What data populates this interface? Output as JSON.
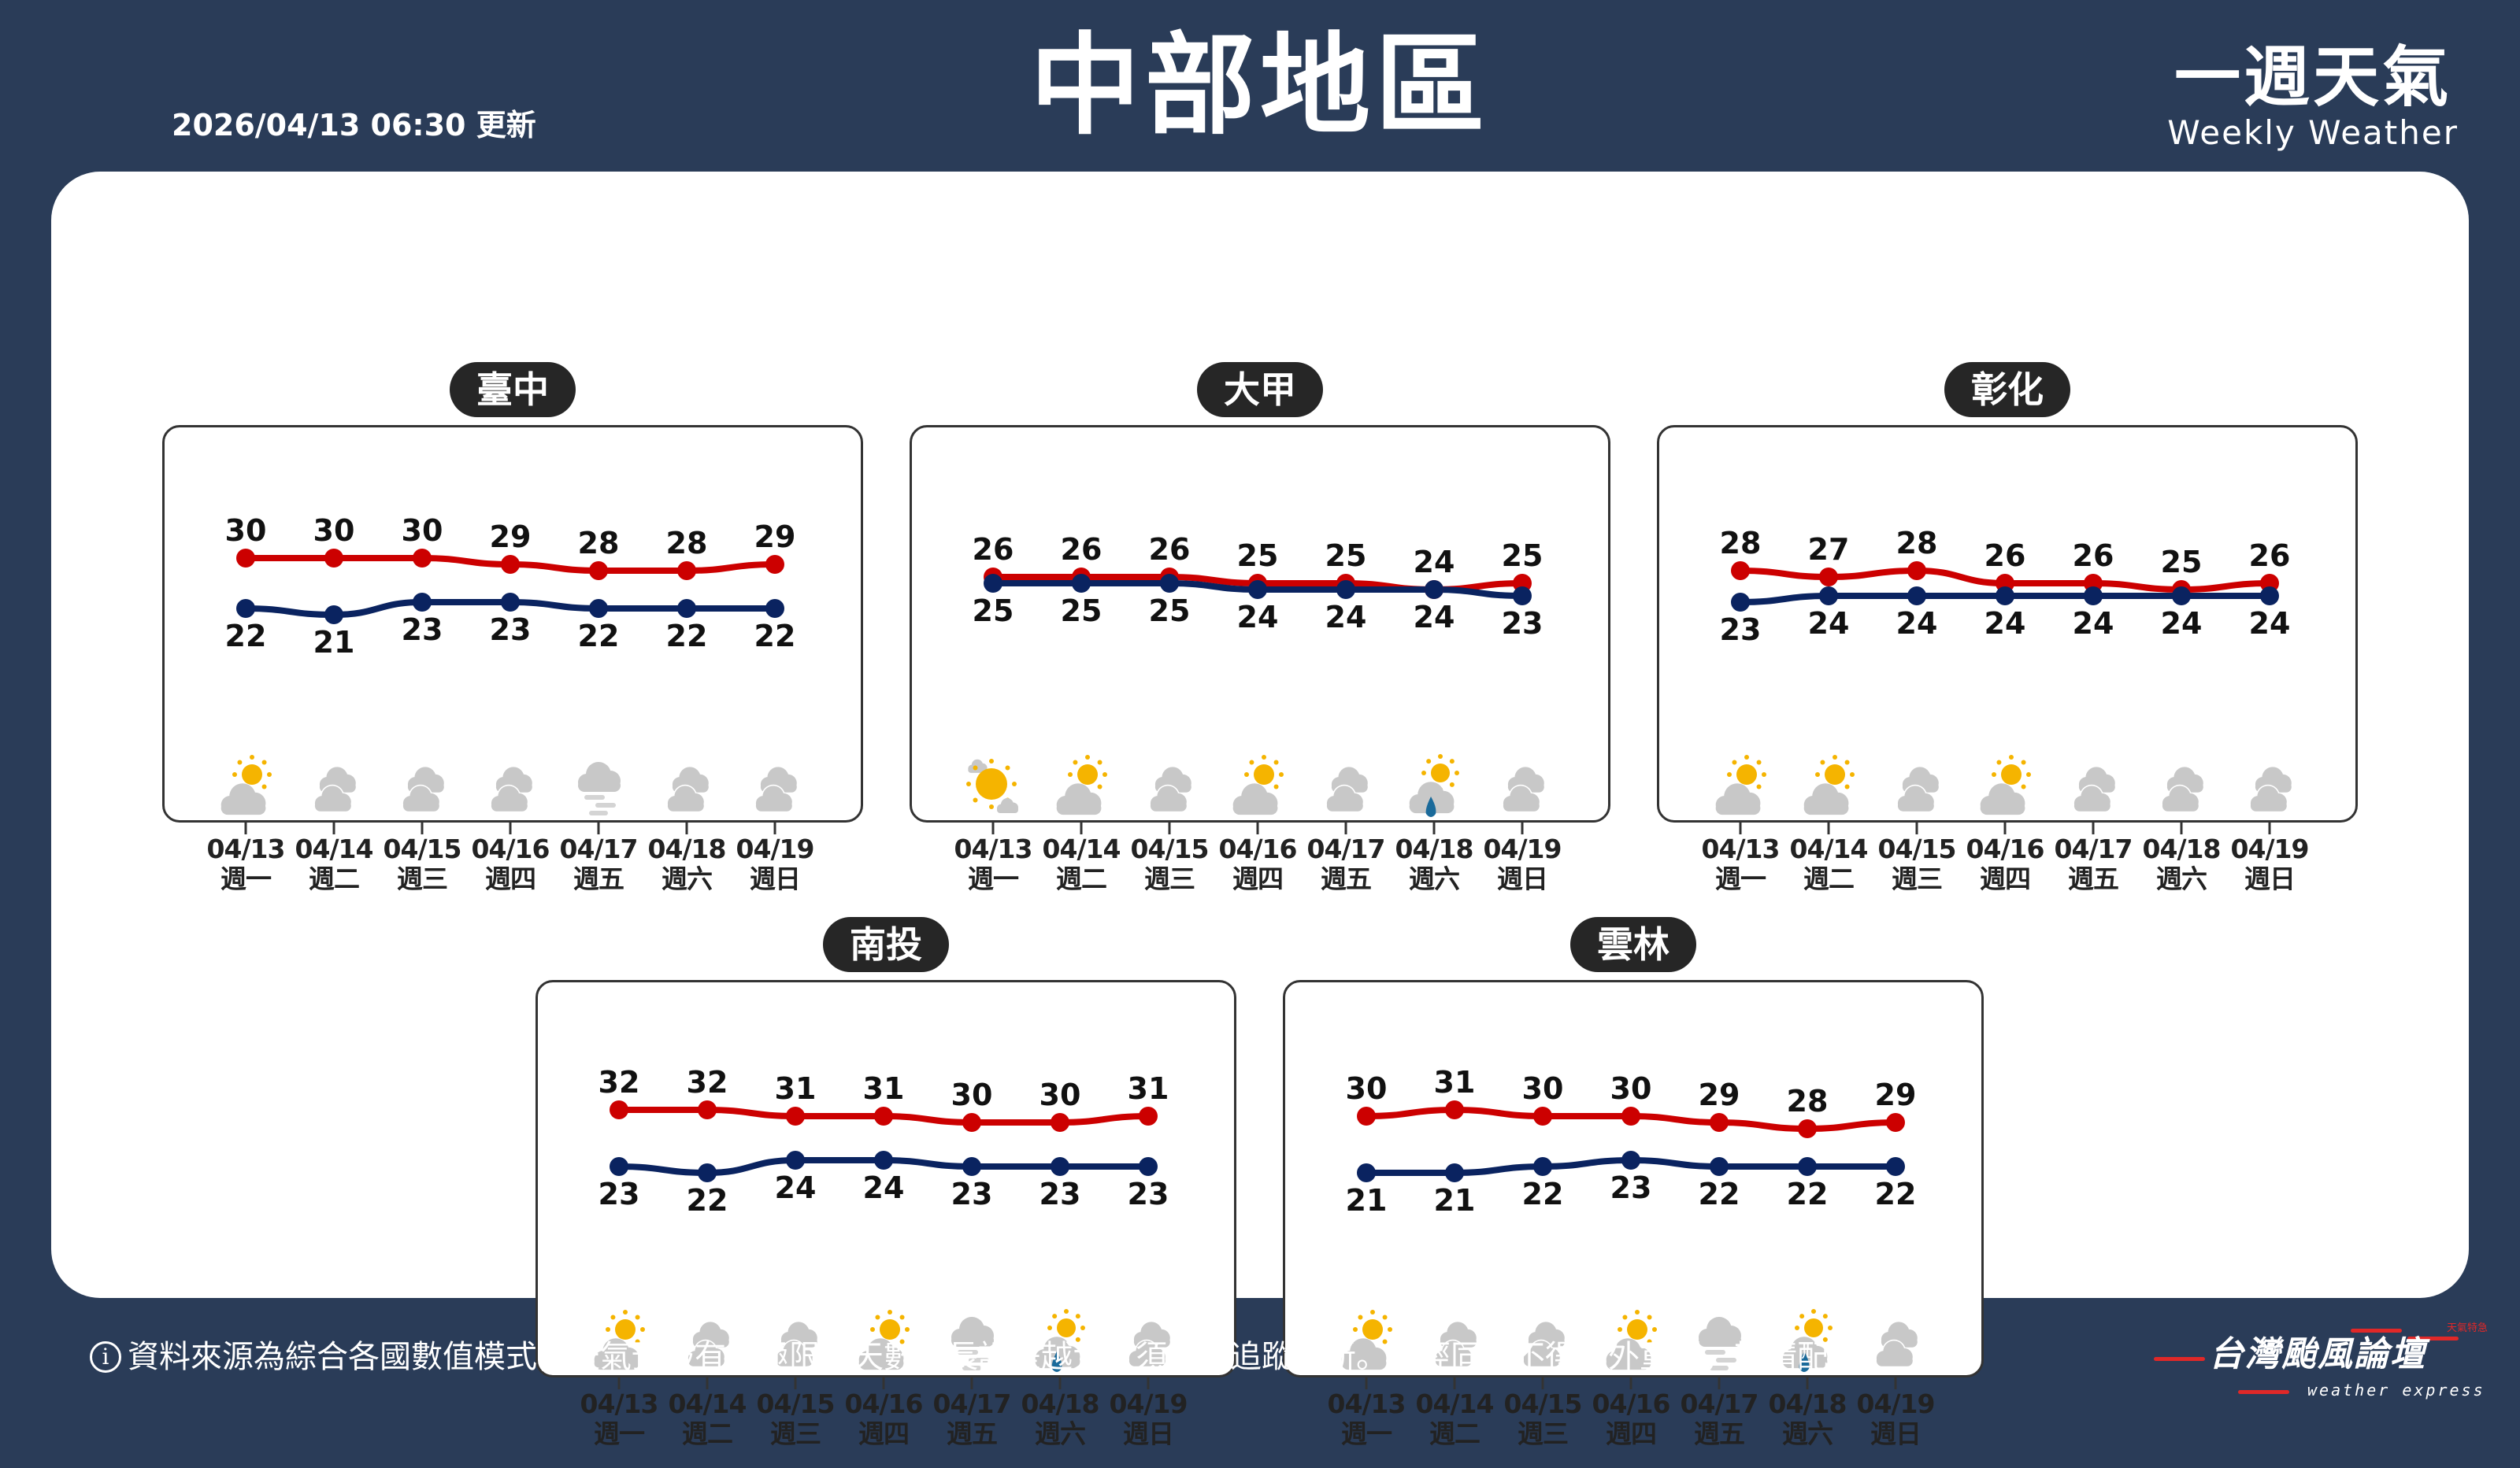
{
  "header": {
    "title": "中部地區",
    "updated": "2026/04/13 06:30 更新",
    "brand_zh": "一週天氣",
    "brand_en": "Weekly Weather"
  },
  "colors": {
    "background": "#2a3c58",
    "high": "#cc0000",
    "low": "#0a2360",
    "sun": "#f5b400",
    "cloud": "#c8c8c8",
    "rain": "#1a6a9a"
  },
  "dates": [
    "04/13",
    "04/14",
    "04/15",
    "04/16",
    "04/17",
    "04/18",
    "04/19"
  ],
  "weekdays": [
    "週一",
    "週二",
    "週三",
    "週四",
    "週五",
    "週六",
    "週日"
  ],
  "cities": [
    {
      "name": "臺中",
      "high": [
        30,
        30,
        30,
        29,
        28,
        28,
        29
      ],
      "low": [
        22,
        21,
        23,
        23,
        22,
        22,
        22
      ],
      "icons": [
        "partly-cloudy",
        "cloudy",
        "cloudy",
        "cloudy",
        "fog",
        "cloudy",
        "cloudy"
      ]
    },
    {
      "name": "大甲",
      "high": [
        26,
        26,
        26,
        25,
        25,
        24,
        25
      ],
      "low": [
        25,
        25,
        25,
        24,
        24,
        24,
        23
      ],
      "icons": [
        "mostly-sunny",
        "partly-cloudy",
        "cloudy",
        "partly-cloudy",
        "cloudy",
        "partly-cloudy-rain",
        "cloudy"
      ]
    },
    {
      "name": "彰化",
      "high": [
        28,
        27,
        28,
        26,
        26,
        25,
        26
      ],
      "low": [
        23,
        24,
        24,
        24,
        24,
        24,
        24
      ],
      "icons": [
        "partly-cloudy",
        "partly-cloudy",
        "cloudy",
        "partly-cloudy",
        "cloudy",
        "cloudy",
        "cloudy"
      ]
    },
    {
      "name": "南投",
      "high": [
        32,
        32,
        31,
        31,
        30,
        30,
        31
      ],
      "low": [
        23,
        22,
        24,
        24,
        23,
        23,
        23
      ],
      "icons": [
        "partly-cloudy",
        "cloudy",
        "cloudy",
        "partly-cloudy",
        "fog",
        "partly-cloudy-rain",
        "cloudy"
      ]
    },
    {
      "name": "雲林",
      "high": [
        30,
        31,
        30,
        30,
        29,
        28,
        29
      ],
      "low": [
        21,
        21,
        22,
        23,
        22,
        22,
        22
      ],
      "icons": [
        "partly-cloudy",
        "cloudy",
        "cloudy",
        "partly-cloudy",
        "fog",
        "partly-cloudy-rain",
        "cloudy"
      ]
    }
  ],
  "footer": {
    "note": "資料來源為綜合各國數值模式，天氣預報有其極限，天數越長誤差越大，須定期追蹤更新。未經同意不得額外重製，敬請配合。",
    "logo_zh": "台灣颱風論壇",
    "logo_en": "weather express",
    "logo_tag": "天氣特急"
  }
}
